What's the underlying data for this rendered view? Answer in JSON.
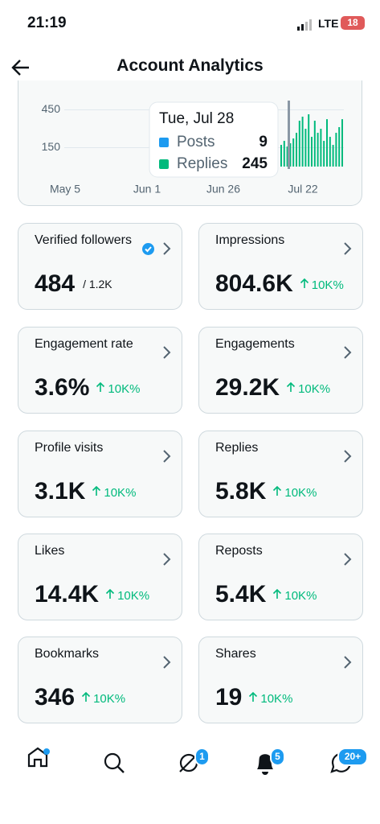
{
  "status_bar": {
    "time": "21:19",
    "network": "LTE",
    "battery": "18"
  },
  "header": {
    "title": "Account Analytics"
  },
  "chart_data": {
    "type": "bar",
    "categories": [
      null,
      null,
      null,
      null,
      null,
      null,
      null,
      null,
      null,
      null,
      null,
      null,
      null,
      null,
      null,
      null,
      null,
      null,
      null,
      null,
      null
    ],
    "values": [
      172,
      204,
      159,
      185,
      223,
      268,
      364,
      396,
      300,
      415,
      236,
      364,
      268,
      300,
      204,
      376,
      236,
      172,
      268,
      313,
      376
    ],
    "color": "#00ba7c",
    "ylim": [
      0,
      500
    ],
    "yticks": [
      150,
      450
    ],
    "grid": true,
    "x_labels": [
      "May 5",
      "Jun 1",
      "Jun 26",
      "Jul 22"
    ]
  },
  "tooltip": {
    "date": "Tue, Jul 28",
    "rows": [
      {
        "name": "Posts",
        "value": "9",
        "color": "#1d9bf0"
      },
      {
        "name": "Replies",
        "value": "245",
        "color": "#00ba7c"
      }
    ]
  },
  "metrics": [
    {
      "label": "Verified followers",
      "value": "484",
      "total": "/ 1.2K",
      "verified": true
    },
    {
      "label": "Impressions",
      "value": "804.6K",
      "change": "10K%"
    },
    {
      "label": "Engagement rate",
      "value": "3.6%",
      "change": "10K%"
    },
    {
      "label": "Engagements",
      "value": "29.2K",
      "change": "10K%"
    },
    {
      "label": "Profile visits",
      "value": "3.1K",
      "change": "10K%"
    },
    {
      "label": "Replies",
      "value": "5.8K",
      "change": "10K%"
    },
    {
      "label": "Likes",
      "value": "14.4K",
      "change": "10K%"
    },
    {
      "label": "Reposts",
      "value": "5.4K",
      "change": "10K%"
    },
    {
      "label": "Bookmarks",
      "value": "346",
      "change": "10K%"
    },
    {
      "label": "Shares",
      "value": "19",
      "change": "10K%"
    }
  ],
  "nav": {
    "badges": [
      "1",
      "5",
      "20+"
    ]
  }
}
